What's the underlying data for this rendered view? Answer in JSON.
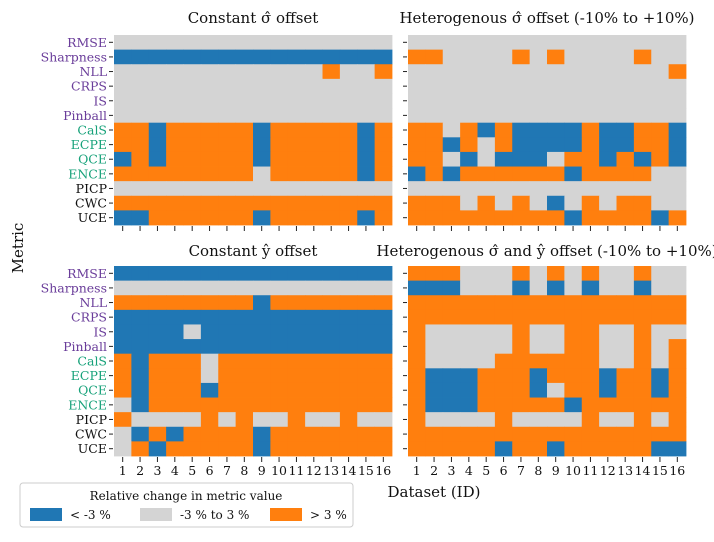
{
  "colors": {
    "low": "#2077b4",
    "mid": "#d4d4d4",
    "high": "#ff7f0e",
    "purple": "#6a3d9a",
    "teal": "#17a27a",
    "black": "#111111"
  },
  "chart_data": {
    "type": "heatmap",
    "ylabel": "Metric",
    "xlabel": "Dataset (ID)",
    "x_categories": [
      "1",
      "2",
      "3",
      "4",
      "5",
      "6",
      "7",
      "8",
      "9",
      "10",
      "11",
      "12",
      "13",
      "14",
      "15",
      "16"
    ],
    "metrics": [
      {
        "name": "RMSE",
        "group": "purple"
      },
      {
        "name": "Sharpness",
        "group": "purple"
      },
      {
        "name": "NLL",
        "group": "purple"
      },
      {
        "name": "CRPS",
        "group": "purple"
      },
      {
        "name": "IS",
        "group": "purple"
      },
      {
        "name": "Pinball",
        "group": "purple"
      },
      {
        "name": "CalS",
        "group": "teal"
      },
      {
        "name": "ECPE",
        "group": "teal"
      },
      {
        "name": "QCE",
        "group": "teal"
      },
      {
        "name": "ENCE",
        "group": "teal"
      },
      {
        "name": "PICP",
        "group": "black"
      },
      {
        "name": "CWC",
        "group": "black"
      },
      {
        "name": "UCE",
        "group": "black"
      }
    ],
    "legend": {
      "title": "Relative change in metric value",
      "entries": [
        {
          "key": "low",
          "label": "< -3 %"
        },
        {
          "key": "mid",
          "label": "-3 % to 3 %"
        },
        {
          "key": "high",
          "label": "> 3 %"
        }
      ]
    },
    "value_key": {
      "L": "< -3 %",
      "M": "-3 % to 3 %",
      "H": "> 3 %"
    },
    "panels": [
      {
        "title": "Constant σ̂ offset",
        "rows": [
          "MMMMMMMMMMMMMMMM",
          "LLLLLLLLLLLLLLLL",
          "MMMMMMMMMMMMHMMH",
          "MMMMMMMMMMMMMMMM",
          "MMMMMMMMMMMMMMMM",
          "MMMMMMMMMMMMMMMM",
          "HHLHHHHHLHHHHHLH",
          "HHLHHHHHLHHHHHLH",
          "LHLHHHHHLHHHHHLH",
          "HHHHHHHHMHHHHHLH",
          "MMMMMMMMMMMMMMMM",
          "HHHHHHHHHHHHHHHH",
          "LLHHHHHHLHHHHHLH"
        ]
      },
      {
        "title": "Heterogenous σ̂ offset (-10% to +10%)",
        "rows": [
          "MMMMMMMMMMMMMMMM",
          "HHMMMMHMHMMMMHMM",
          "MMMMMMMMMMMMMMMH",
          "MMMMMMMMMMMMMMMM",
          "MMMMMMMMMMMMMMMM",
          "MMMMMMMMMMMMMMMM",
          "HHMHLHLLLLHLLHHL",
          "HHLHMHLLLLHLLHHL",
          "HHMLMLLLMHHLHLHL",
          "LHLHHHHHHLHHHHMM",
          "MMMMMMMMMMMMMMMM",
          "HHHMHMHMLMHMHHMM",
          "HHHHHHHHHLHHHHLH"
        ]
      },
      {
        "title": "Constant ŷ offset",
        "rows": [
          "LLLLLLLLLLLLLLLL",
          "MMMMMMMMMMMMMMMM",
          "HHHHHHHHLHHHHHHH",
          "LLLLLLLLLLLLLLLL",
          "LLLLMLLLLLLLLLLL",
          "LLLLLLLLLLLLLLLL",
          "HLHHHMHHHHHHHHHH",
          "HLHHHMHHHHHHHHHH",
          "HLHHHLHHHHHHHHHH",
          "MLHHHHHHHHHHHHHH",
          "HMMMMHMHMMHMMHMM",
          "MLHLHHHHLHHHHHHH",
          "MHLHHHHHLHHHHHHH"
        ]
      },
      {
        "title": "Heterogenous σ̂ and ŷ offset (-10% to +10%)",
        "rows": [
          "HHHMMMHMHMHMMHMM",
          "LLLMMMLMLMLMMLMM",
          "HHHHHHHHHHHHHHHH",
          "HHHHHHHHHHHHHHHH",
          "HMMMMMHMMHHMMHMM",
          "HMMMMMHMMHHMMHMH",
          "HMMMMHHHHHHMMHMH",
          "HLLLHHHLHHHLHHLH",
          "HLLLHHHLMHHLHHLH",
          "HLLLHHHHHLHHHHHH",
          "HMMMMHMMMMHMMHMH",
          "HHHHHHHHHHHHHHHH",
          "HHHHHLHHLHHHHHLL"
        ]
      }
    ]
  }
}
